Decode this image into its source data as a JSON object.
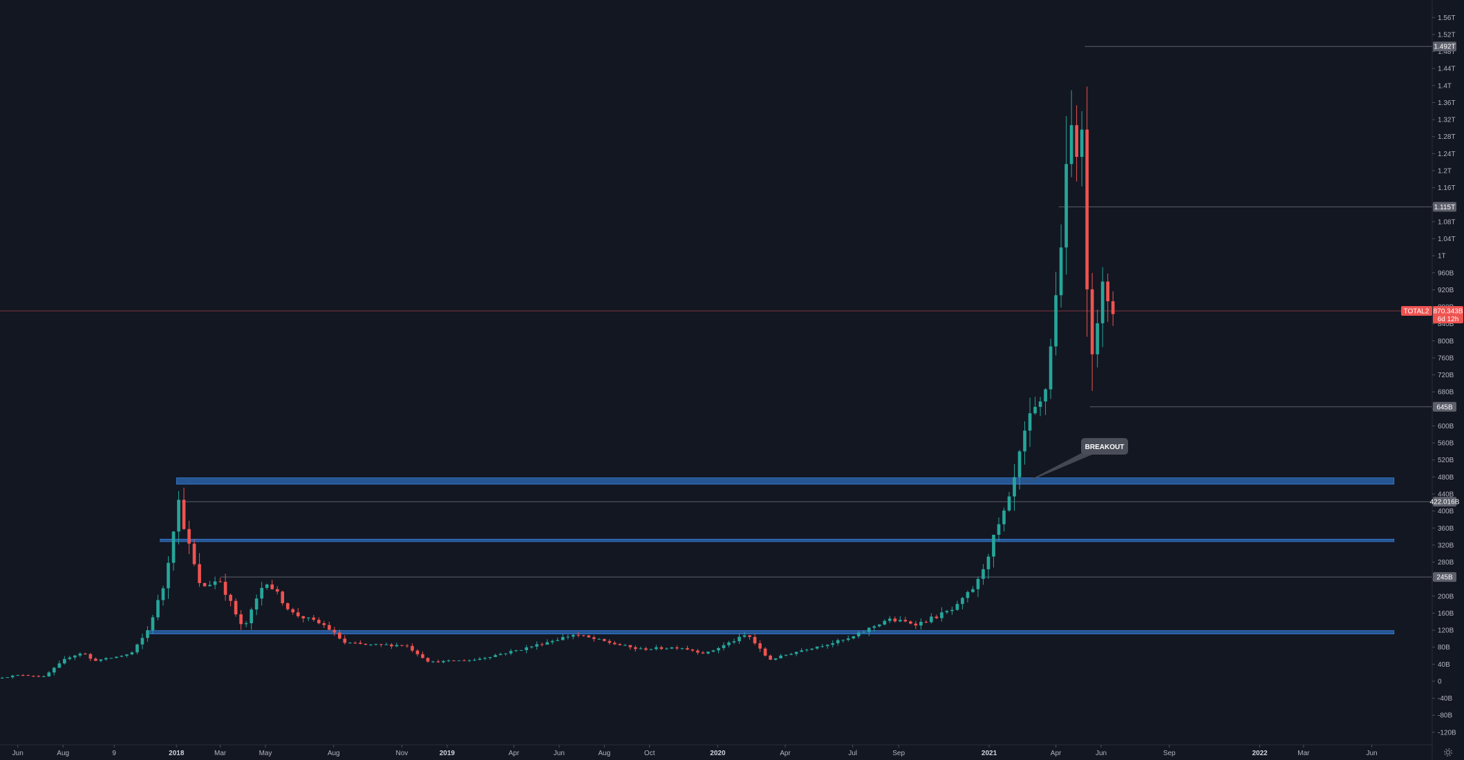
{
  "symbol": "TOTAL2",
  "colors": {
    "background": "#131722",
    "up": "#26a69a",
    "down": "#ef5350",
    "zone": "#2962a6",
    "level_line": "#787b86",
    "axis_text": "#b2b5be"
  },
  "icons": {
    "settings": "gear-icon"
  },
  "price_axis": {
    "tick_labels": [
      "1.56T",
      "1.52T",
      "1.48T",
      "1.44T",
      "1.4T",
      "1.36T",
      "1.32T",
      "1.28T",
      "1.24T",
      "1.2T",
      "1.16T",
      "1.12T",
      "1.08T",
      "1.04T",
      "1T",
      "960B",
      "920B",
      "880B",
      "840B",
      "800B",
      "760B",
      "720B",
      "680B",
      "640B",
      "600B",
      "560B",
      "520B",
      "480B",
      "440B",
      "400B",
      "360B",
      "320B",
      "280B",
      "240B",
      "200B",
      "160B",
      "120B",
      "80B",
      "40B",
      "0",
      "-40B",
      "-80B",
      "-120B"
    ]
  },
  "time_axis": {
    "labels": [
      {
        "text": "Jun",
        "date": "2017-06-01",
        "year": false
      },
      {
        "text": "Aug",
        "date": "2017-08-01",
        "year": false
      },
      {
        "text": "9",
        "date": "2017-10-09",
        "year": false
      },
      {
        "text": "2018",
        "date": "2018-01-01",
        "year": true
      },
      {
        "text": "Mar",
        "date": "2018-03-01",
        "year": false
      },
      {
        "text": "May",
        "date": "2018-05-01",
        "year": false
      },
      {
        "text": "Aug",
        "date": "2018-08-01",
        "year": false
      },
      {
        "text": "Nov",
        "date": "2018-11-01",
        "year": false
      },
      {
        "text": "2019",
        "date": "2019-01-01",
        "year": true
      },
      {
        "text": "Apr",
        "date": "2019-04-01",
        "year": false
      },
      {
        "text": "Jun",
        "date": "2019-06-01",
        "year": false
      },
      {
        "text": "Aug",
        "date": "2019-08-01",
        "year": false
      },
      {
        "text": "Oct",
        "date": "2019-10-01",
        "year": false
      },
      {
        "text": "2020",
        "date": "2020-01-01",
        "year": true
      },
      {
        "text": "Apr",
        "date": "2020-04-01",
        "year": false
      },
      {
        "text": "Jul",
        "date": "2020-07-01",
        "year": false
      },
      {
        "text": "Sep",
        "date": "2020-09-01",
        "year": false
      },
      {
        "text": "2021",
        "date": "2021-01-01",
        "year": true
      },
      {
        "text": "Apr",
        "date": "2021-04-01",
        "year": false
      },
      {
        "text": "Jun",
        "date": "2021-06-01",
        "year": false
      },
      {
        "text": "Sep",
        "date": "2021-09-01",
        "year": false
      },
      {
        "text": "2022",
        "date": "2022-01-01",
        "year": true
      },
      {
        "text": "Mar",
        "date": "2022-03-01",
        "year": false
      },
      {
        "text": "Jun",
        "date": "2022-06-01",
        "year": false
      }
    ]
  },
  "current_price": {
    "label": "870.343B",
    "countdown": "6d 12h",
    "value": 870.343
  },
  "price_levels": [
    {
      "label": "1.492T",
      "value": 1492,
      "start": "2021-05-10"
    },
    {
      "label": "1.115T",
      "value": 1115,
      "start": "2021-04-05"
    },
    {
      "label": "645B",
      "value": 645,
      "start": "2021-05-17"
    },
    {
      "label": "422.016B",
      "value": 422.016,
      "start": "2018-01-08"
    },
    {
      "label": "245B",
      "value": 245,
      "start": "2018-03-01"
    }
  ],
  "zones": [
    {
      "low": 463,
      "high": 478,
      "start": "2018-01-01",
      "end": "2022-07-01"
    },
    {
      "low": 328,
      "high": 334,
      "start": "2017-12-10",
      "end": "2022-07-01"
    },
    {
      "low": 111,
      "high": 119,
      "start": "2017-11-26",
      "end": "2022-07-01"
    }
  ],
  "annotation": {
    "text": "BREAKOUT",
    "pointer_date": "2021-02-14",
    "pointer_value": 463
  },
  "chart_data": {
    "type": "candlestick",
    "interval": "1W",
    "ylim": [
      -130,
      1580
    ],
    "xlim": [
      "2017-05-08",
      "2022-08-01"
    ],
    "grid": false,
    "key_points": [
      [
        "2017-05-08",
        8
      ],
      [
        "2017-06-12",
        15
      ],
      [
        "2017-07-10",
        10
      ],
      [
        "2017-08-10",
        55
      ],
      [
        "2017-09-01",
        68
      ],
      [
        "2017-09-14",
        48
      ],
      [
        "2017-10-10",
        55
      ],
      [
        "2017-11-05",
        65
      ],
      [
        "2017-11-26",
        115
      ],
      [
        "2017-12-20",
        230
      ],
      [
        "2018-01-07",
        430
      ],
      [
        "2018-01-20",
        330
      ],
      [
        "2018-02-06",
        220
      ],
      [
        "2018-03-04",
        240
      ],
      [
        "2018-04-05",
        120
      ],
      [
        "2018-05-05",
        240
      ],
      [
        "2018-06-10",
        160
      ],
      [
        "2018-07-25",
        130
      ],
      [
        "2018-08-20",
        90
      ],
      [
        "2018-09-20",
        85
      ],
      [
        "2018-11-10",
        85
      ],
      [
        "2018-12-12",
        45
      ],
      [
        "2019-02-10",
        50
      ],
      [
        "2019-04-15",
        75
      ],
      [
        "2019-06-25",
        110
      ],
      [
        "2019-08-01",
        95
      ],
      [
        "2019-09-20",
        75
      ],
      [
        "2019-11-15",
        80
      ],
      [
        "2019-12-20",
        65
      ],
      [
        "2020-02-14",
        110
      ],
      [
        "2020-03-14",
        50
      ],
      [
        "2020-05-01",
        75
      ],
      [
        "2020-07-01",
        100
      ],
      [
        "2020-08-20",
        145
      ],
      [
        "2020-10-01",
        135
      ],
      [
        "2020-11-20",
        170
      ],
      [
        "2020-12-20",
        230
      ],
      [
        "2021-01-10",
        330
      ],
      [
        "2021-02-01",
        420
      ],
      [
        "2021-02-25",
        600
      ],
      [
        "2021-03-20",
        660
      ],
      [
        "2021-04-05",
        900
      ],
      [
        "2021-04-25",
        1300
      ],
      [
        "2021-05-12",
        1250
      ],
      [
        "2021-05-20",
        760
      ],
      [
        "2021-05-30",
        850
      ],
      [
        "2021-06-07",
        920
      ],
      [
        "2021-06-14",
        870
      ]
    ]
  }
}
